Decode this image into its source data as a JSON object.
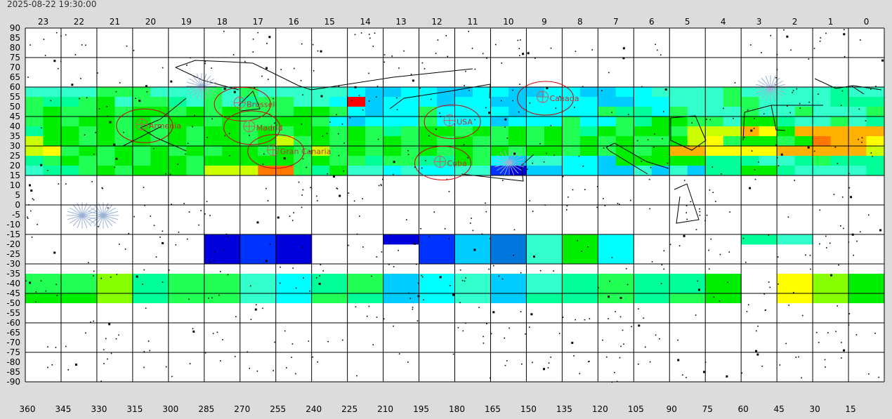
{
  "timestamp": "2025-08-22 19:30:00",
  "hour_labels": [
    "23",
    "22",
    "21",
    "20",
    "19",
    "18",
    "17",
    "16",
    "15",
    "14",
    "13",
    "12",
    "11",
    "10",
    "9",
    "8",
    "7",
    "6",
    "5",
    "4",
    "3",
    "2",
    "1",
    "0"
  ],
  "lat_labels": [
    "90",
    "85",
    "80",
    "75",
    "70",
    "65",
    "60",
    "55",
    "50",
    "45",
    "40",
    "35",
    "30",
    "25",
    "20",
    "15",
    "10",
    "5",
    "0",
    "-5",
    "-10",
    "-15",
    "-20",
    "-25",
    "-30",
    "-35",
    "-40",
    "-45",
    "-50",
    "-55",
    "-60",
    "-65",
    "-70",
    "-75",
    "-80",
    "-85",
    "-90"
  ],
  "ra_labels": [
    "360",
    "345",
    "330",
    "315",
    "300",
    "285",
    "270",
    "255",
    "240",
    "225",
    "210",
    "195",
    "180",
    "165",
    "150",
    "135",
    "120",
    "105",
    "90",
    "75",
    "60",
    "45",
    "30",
    "15"
  ],
  "markers": [
    {
      "name": "Armenia",
      "ra": 310,
      "dec": 41
    },
    {
      "name": "Brussel",
      "ra": 269,
      "dec": 52
    },
    {
      "name": "Madrid",
      "ra": 265,
      "dec": 40
    },
    {
      "name": "Gran Canaria",
      "ra": 255,
      "dec": 28
    },
    {
      "name": "Cuba",
      "ra": 185,
      "dec": 22
    },
    {
      "name": "USA",
      "ra": 181,
      "dec": 43
    },
    {
      "name": "Canada",
      "ra": 142,
      "dec": 55
    }
  ],
  "colors": {
    "background": "#dcdcdc",
    "grid": "#000000",
    "marker": "#cc0000",
    "marker_label": "#bb3333"
  }
}
